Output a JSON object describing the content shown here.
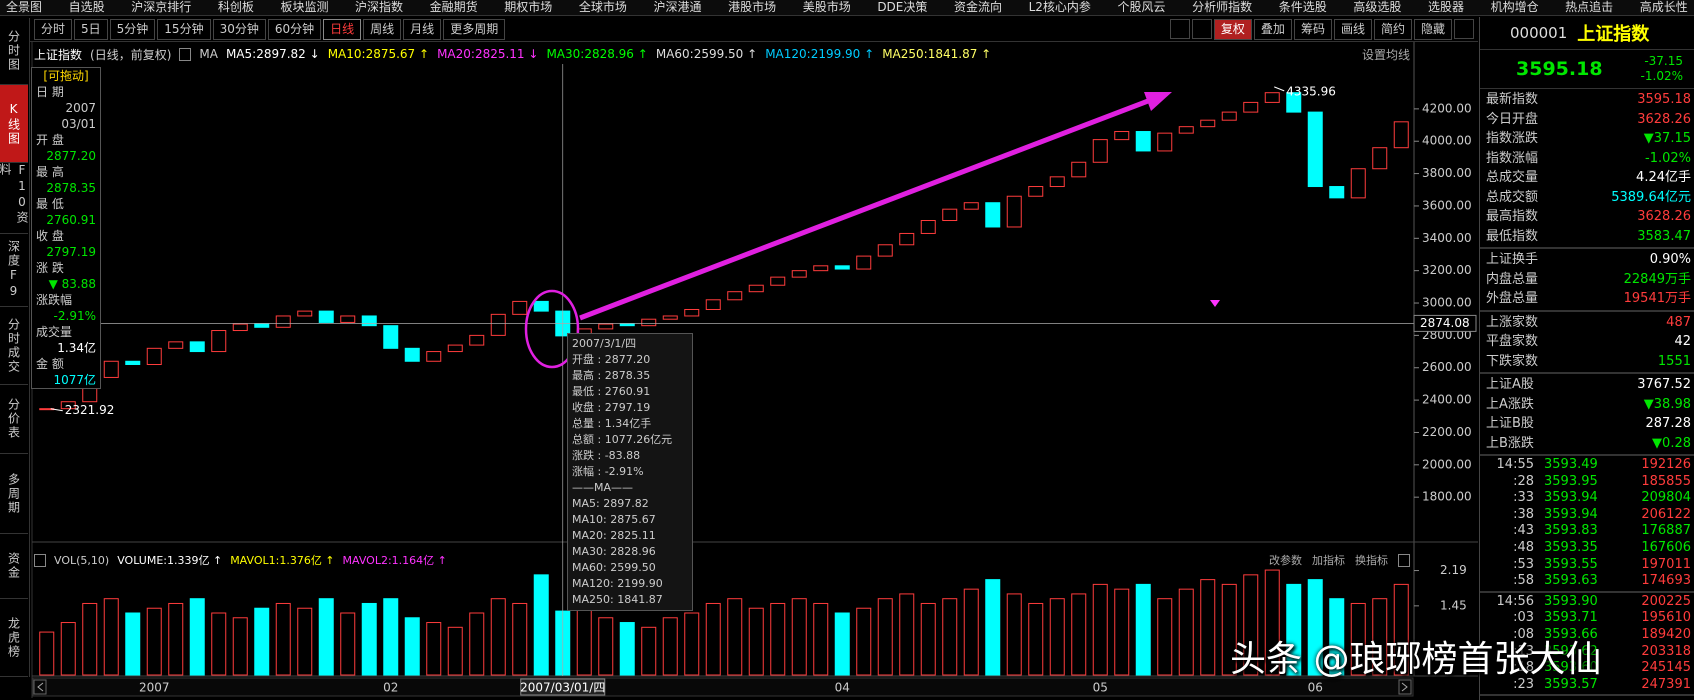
{
  "menu": [
    "全景图",
    "自选股",
    "沪深京排行",
    "科创板",
    "板块监测",
    "沪深指数",
    "金融期货",
    "期权市场",
    "全球市场",
    "沪深港通",
    "港股市场",
    "美股市场",
    "DDE决策",
    "资金流向",
    "L2核心内参",
    "个股风云",
    "分析师指数",
    "条件选股",
    "高级选股",
    "选股器",
    "机构增仓",
    "热点追击",
    "高成长性"
  ],
  "toolbar": {
    "periods": [
      "分时",
      "5日",
      "5分钟",
      "15分钟",
      "30分钟",
      "60分钟",
      "日线",
      "周线",
      "月线",
      "更多周期"
    ],
    "tools": [
      "复权",
      "叠加",
      "筹码",
      "画线",
      "简约",
      "隐藏"
    ]
  },
  "side_tabs": [
    "分时图",
    "K线图",
    "F10资料",
    "深度F9",
    "分时成交",
    "分价表",
    "多周期",
    "资金",
    "龙虎榜"
  ],
  "chart_data": {
    "type": "candlestick",
    "title": "上证指数",
    "subtitle": "(日线，前复权)",
    "ma_label": "MA",
    "ma": [
      {
        "label": "MA5:2897.82 ↓",
        "color": "#ffffff"
      },
      {
        "label": "MA10:2875.67 ↑",
        "color": "#ffff00"
      },
      {
        "label": "MA20:2825.11 ↓",
        "color": "#ff33ff"
      },
      {
        "label": "MA30:2828.96 ↑",
        "color": "#00ff00"
      },
      {
        "label": "MA60:2599.50 ↑",
        "color": "#dddddd"
      },
      {
        "label": "MA120:2199.90 ↑",
        "color": "#00ccff"
      },
      {
        "label": "MA250:1841.87 ↑",
        "color": "#ffff66"
      }
    ],
    "settings_label": "设置均线",
    "categories": [
      null,
      null,
      null,
      null,
      null,
      "2007",
      null,
      null,
      null,
      null,
      null,
      null,
      null,
      null,
      null,
      null,
      "02",
      null,
      null,
      null,
      null,
      null,
      null,
      null,
      null,
      null,
      null,
      null,
      null,
      null,
      null,
      null,
      null,
      null,
      null,
      null,
      null,
      "04",
      null,
      null,
      null,
      null,
      null,
      null,
      null,
      null,
      null,
      null,
      null,
      "05",
      null,
      null,
      null,
      null,
      null,
      null,
      null,
      null,
      null,
      "06",
      null,
      null,
      null,
      null
    ],
    "values": [
      2347,
      2390,
      2540,
      2640,
      2620,
      2720,
      2760,
      2700,
      2830,
      2870,
      2850,
      2920,
      2950,
      2880,
      2920,
      2860,
      2720,
      2640,
      2700,
      2740,
      2800,
      2930,
      3010,
      2950,
      2797,
      2840,
      2870,
      2860,
      2900,
      2920,
      2960,
      3020,
      3070,
      3110,
      3160,
      3200,
      3230,
      3210,
      3290,
      3360,
      3430,
      3510,
      3580,
      3620,
      3470,
      3660,
      3720,
      3780,
      3870,
      4010,
      4060,
      3940,
      4050,
      4090,
      4130,
      4180,
      4240,
      4300,
      4180,
      3720,
      3650,
      3830,
      3960,
      4120
    ],
    "color_up": "#ff3c3c",
    "color_down": "#00ffff",
    "ylim": [
      1560,
      4465
    ],
    "yticks": [
      {
        "value": 1800,
        "label": "1800.00"
      },
      {
        "value": 2000,
        "label": "2000.00"
      },
      {
        "value": 2200,
        "label": "2200.00"
      },
      {
        "value": 2400,
        "label": "2400.00"
      },
      {
        "value": 2600,
        "label": "2600.00"
      },
      {
        "value": 2800,
        "label": "2800.00"
      },
      {
        "value": 3000,
        "label": "3000.00"
      },
      {
        "value": 3200,
        "label": "3200.00"
      },
      {
        "value": 3400,
        "label": "3400.00"
      },
      {
        "value": 3600,
        "label": "3600.00"
      },
      {
        "value": 3800,
        "label": "3800.00"
      },
      {
        "value": 4000,
        "label": "4000.00"
      },
      {
        "value": 4200,
        "label": "4200.00"
      }
    ],
    "annotations": {
      "high": 4335.96,
      "low": 2321.92
    },
    "crosshair": {
      "price": 2874.08,
      "date": "2007/03/01/四"
    },
    "volume": {
      "title": "VOL(5,10)",
      "labels": [
        {
          "text": "VOLUME:1.339亿 ↑",
          "color": "#ffffff"
        },
        {
          "text": "MAVOL1:1.376亿 ↑",
          "color": "#ffff00"
        },
        {
          "text": "MAVOL2:1.164亿 ↑",
          "color": "#ff33ff"
        }
      ],
      "buttons": [
        "改参数",
        "加指标",
        "换指标"
      ],
      "values": [
        0.9,
        1.1,
        1.5,
        1.6,
        1.3,
        1.4,
        1.5,
        1.6,
        1.3,
        1.2,
        1.4,
        1.5,
        1.4,
        1.6,
        1.3,
        1.5,
        1.6,
        1.2,
        1.1,
        1.0,
        1.3,
        1.6,
        1.5,
        2.1,
        1.34,
        1.4,
        1.2,
        1.1,
        1.0,
        1.2,
        1.3,
        1.5,
        1.6,
        1.4,
        1.5,
        1.6,
        1.5,
        1.3,
        1.4,
        1.6,
        1.7,
        1.5,
        1.6,
        1.8,
        2.0,
        1.7,
        1.5,
        1.6,
        1.7,
        1.9,
        1.8,
        1.9,
        1.6,
        1.8,
        2.0,
        1.9,
        2.1,
        2.2,
        1.9,
        2.0,
        1.6,
        1.5,
        1.6,
        1.9
      ],
      "ylim": [
        0,
        2.6
      ],
      "yticks": [
        1.45,
        2.19
      ]
    }
  },
  "info_panel": {
    "title": "[可拖动]",
    "items": [
      {
        "label": "日 期",
        "values": [
          "2007",
          "03/01"
        ],
        "color": "#cccccc"
      },
      {
        "label": "开 盘",
        "values": [
          "2877.20"
        ],
        "color": "#00e600"
      },
      {
        "label": "最 高",
        "values": [
          "2878.35"
        ],
        "color": "#00e600"
      },
      {
        "label": "最 低",
        "values": [
          "2760.91"
        ],
        "color": "#00e600"
      },
      {
        "label": "收 盘",
        "values": [
          "2797.19"
        ],
        "color": "#00e600"
      },
      {
        "label": "涨 跌",
        "values": [
          "▼ 83.88"
        ],
        "color": "#00e600"
      },
      {
        "label": "涨跌幅",
        "values": [
          "-2.91%"
        ],
        "color": "#00e600"
      },
      {
        "label": "成交量",
        "values": [
          "1.34亿"
        ],
        "color": "#ffffff"
      },
      {
        "label": "金 额",
        "values": [
          "1077亿"
        ],
        "color": "#00ffff"
      }
    ]
  },
  "tooltip": {
    "title": "2007/3/1/四",
    "lines": [
      "开盘 : 2877.20",
      "最高 : 2878.35",
      "最低 : 2760.91",
      "收盘 : 2797.19",
      "总量 : 1.34亿手",
      "总额 : 1077.26亿元",
      "涨跌 : -83.88",
      "涨幅 : -2.91%",
      "——MA——",
      "MA5: 2897.82",
      "MA10: 2875.67",
      "MA20: 2825.11",
      "MA30: 2828.96",
      "MA60: 2599.50",
      "MA120: 2199.90",
      "MA250: 1841.87"
    ]
  },
  "quote": {
    "code": "000001",
    "name": "上证指数",
    "price": "3595.18",
    "change": "-37.15",
    "change_pct": "-1.02%",
    "rows": [
      [
        {
          "label": "最新指数",
          "value": "3595.18",
          "color": "#ff3c3c"
        },
        {
          "label": "今日开盘",
          "value": "3628.26",
          "color": "#ff3c3c"
        },
        {
          "label": "指数涨跌",
          "value": "▼37.15",
          "color": "#00e600"
        },
        {
          "label": "指数涨幅",
          "value": "-1.02%",
          "color": "#00e600"
        },
        {
          "label": "总成交量",
          "value": "4.24亿手",
          "color": "#ffffff"
        },
        {
          "label": "总成交额",
          "value": "5389.64亿元",
          "color": "#00ffff"
        },
        {
          "label": "最高指数",
          "value": "3628.26",
          "color": "#ff3c3c"
        },
        {
          "label": "最低指数",
          "value": "3583.47",
          "color": "#00e600"
        }
      ],
      [
        {
          "label": "上证换手",
          "value": "0.90%",
          "color": "#ffffff"
        },
        {
          "label": "内盘总量",
          "value": "22849万手",
          "color": "#00e600"
        },
        {
          "label": "外盘总量",
          "value": "19541万手",
          "color": "#ff3c3c"
        }
      ],
      [
        {
          "label": "上涨家数",
          "value": "487",
          "color": "#ff3c3c"
        },
        {
          "label": "平盘家数",
          "value": "42",
          "color": "#ffffff"
        },
        {
          "label": "下跌家数",
          "value": "1551",
          "color": "#00e600"
        }
      ],
      [
        {
          "label": "上证A股",
          "value": "3767.52",
          "color": "#ffffff"
        },
        {
          "label": "上A涨跌",
          "value": "▼38.98",
          "color": "#00e600"
        },
        {
          "label": "上证B股",
          "value": "287.28",
          "color": "#ffffff"
        },
        {
          "label": "上B涨跌",
          "value": "▼0.28",
          "color": "#00e600"
        }
      ]
    ],
    "ticks": [
      [
        {
          "time": "14:55",
          "price": "3593.49",
          "volume": "192126",
          "color": "#ff3c3c"
        },
        {
          "time": ":28",
          "price": "3593.95",
          "volume": "185855",
          "color": "#ff3c3c"
        },
        {
          "time": ":33",
          "price": "3593.94",
          "volume": "209804",
          "color": "#00e600"
        },
        {
          "time": ":38",
          "price": "3593.94",
          "volume": "206122",
          "color": "#ff3c3c"
        },
        {
          "time": ":43",
          "price": "3593.83",
          "volume": "176887",
          "color": "#00e600"
        },
        {
          "time": ":48",
          "price": "3593.35",
          "volume": "167606",
          "color": "#00e600"
        },
        {
          "time": ":53",
          "price": "3593.55",
          "volume": "197011",
          "color": "#ff3c3c"
        },
        {
          "time": ":58",
          "price": "3593.63",
          "volume": "174693",
          "color": "#ff3c3c"
        }
      ],
      [
        {
          "time": "14:56",
          "price": "3593.90",
          "volume": "200225",
          "color": "#ff3c3c"
        },
        {
          "time": ":03",
          "price": "3593.71",
          "volume": "195610",
          "color": "#ff3c3c"
        },
        {
          "time": ":08",
          "price": "3593.66",
          "volume": "189420",
          "color": "#ff3c3c"
        },
        {
          "time": ":13",
          "price": "3593.62",
          "volume": "203318",
          "color": "#ff3c3c"
        },
        {
          "time": ":18",
          "price": "3593.60",
          "volume": "245145",
          "color": "#ff3c3c"
        },
        {
          "time": ":23",
          "price": "3593.57",
          "volume": "247391",
          "color": "#ff3c3c"
        }
      ]
    ]
  },
  "watermark": "头条 @琅琊榜首张大仙"
}
